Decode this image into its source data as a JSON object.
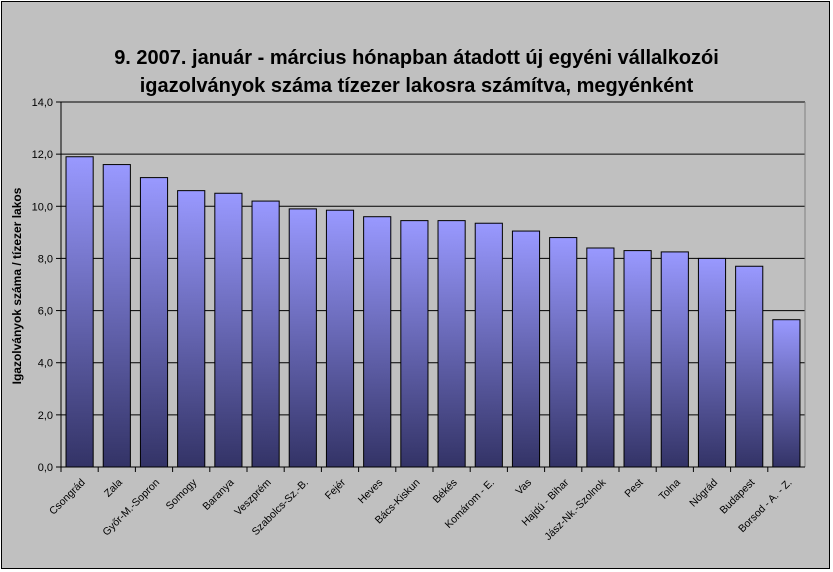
{
  "chart_data": {
    "type": "bar",
    "title_line1": "9.   2007. január - március hónapban átadott új egyéni vállalkozói",
    "title_line2": "igazolványok száma tízezer lakosra számítva, megyénként",
    "xlabel": "",
    "ylabel": "Igazolványok száma / tízezer lakos",
    "ylim": [
      0,
      14
    ],
    "yticks": [
      "0,0",
      "2,0",
      "4,0",
      "6,0",
      "8,0",
      "10,0",
      "12,0",
      "14,0"
    ],
    "grid": true,
    "legend": "none",
    "categories": [
      "Csongrád",
      "Zala",
      "Győr-M.-Sopron",
      "Somogy",
      "Baranya",
      "Veszprém",
      "Szabolcs-Sz.-B.",
      "Fejér",
      "Heves",
      "Bács-Kiskun",
      "Békés",
      "Komárom - E.",
      "Vas",
      "Hajdú - Bihar",
      "Jász-Nk.-Szolnok",
      "Pest",
      "Tolna",
      "Nógrád",
      "Budapest",
      "Borsod - A. - Z."
    ],
    "values": [
      11.9,
      11.6,
      11.1,
      10.6,
      10.5,
      10.2,
      9.9,
      9.85,
      9.6,
      9.45,
      9.45,
      9.35,
      9.05,
      8.8,
      8.4,
      8.3,
      8.25,
      8.0,
      7.7,
      5.65
    ],
    "colors": {
      "plot_bg": "#c0c0c0",
      "bar_top": "#9999ff",
      "bar_bottom": "#333366",
      "grid": "#000000"
    }
  }
}
